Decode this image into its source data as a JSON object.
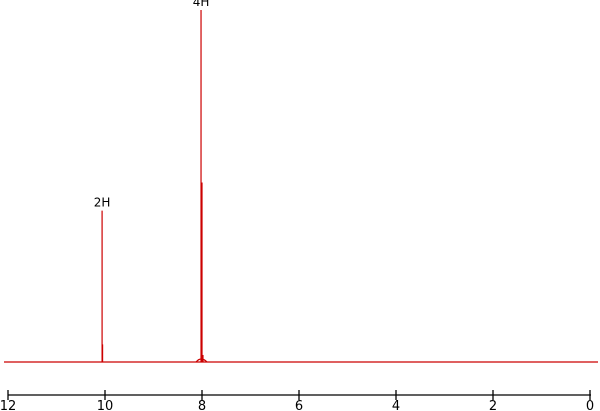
{
  "chart_data": {
    "type": "line",
    "title": "",
    "xlabel": "",
    "ylabel": "",
    "x_axis_reversed": true,
    "xlim": [
      12,
      0
    ],
    "ylim": [
      0,
      1.0
    ],
    "x_ticks": [
      12,
      10,
      8,
      6,
      4,
      2,
      0
    ],
    "x_tick_labels": [
      "12",
      "10",
      "8",
      "6",
      "4",
      "2",
      "0"
    ],
    "grid": false,
    "legend": "none",
    "series": [
      {
        "color": "#cc0000",
        "peaks": [
          {
            "x": 10.06,
            "height": 0.43
          },
          {
            "x": 10.05,
            "height": 0.05
          },
          {
            "x": 8.02,
            "height": 1.0
          },
          {
            "x": 8.0,
            "height": 0.51
          },
          {
            "x": 7.98,
            "height": 0.02
          }
        ]
      }
    ],
    "annotations": [
      {
        "text": "2H",
        "x": 10.06,
        "height": 0.43
      },
      {
        "text": "4H",
        "x": 8.02,
        "height": 1.0
      }
    ]
  },
  "colors": {
    "trace": "#cc0000",
    "axis": "#000000",
    "background": "#ffffff"
  }
}
